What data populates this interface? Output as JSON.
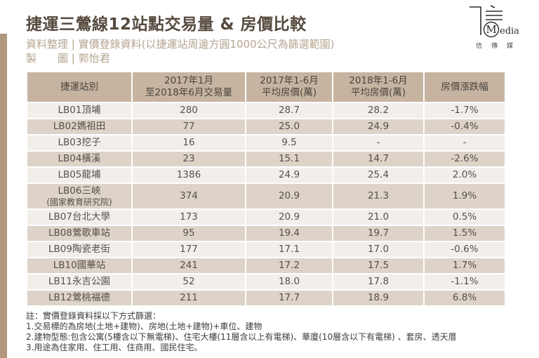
{
  "header": {
    "title": "捷運三鶯線12站點交易量 & 房價比較",
    "credit_line1": "資料整理 | 實價登錄資料(以捷運站周邊方圓1000公尺為篩選範圍)",
    "credit_line2": "製　　圖 | 郭怡君"
  },
  "logo": {
    "m": "M",
    "media": "edia",
    "cn": "信傳媒"
  },
  "table": {
    "columns": [
      {
        "l1": "捷運站別"
      },
      {
        "l1": "2017年1月",
        "l2": "至2018年6月交易量"
      },
      {
        "l1": "2017年1-6月",
        "l2": "平均房價(萬)"
      },
      {
        "l1": "2018年1-6月",
        "l2": "平均房價(萬)"
      },
      {
        "l1": "房價漲跌幅"
      }
    ],
    "rows": [
      {
        "station": [
          "LB01頂埔"
        ],
        "volume": "280",
        "avg2017": "28.7",
        "avg2018": "28.2",
        "change": "-1.7%"
      },
      {
        "station": [
          "LB02媽祖田"
        ],
        "volume": "77",
        "avg2017": "25.0",
        "avg2018": "24.9",
        "change": "-0.4%"
      },
      {
        "station": [
          "LB03挖子"
        ],
        "volume": "16",
        "avg2017": "9.5",
        "avg2018": "-",
        "change": "-"
      },
      {
        "station": [
          "LB04橫溪"
        ],
        "volume": "23",
        "avg2017": "15.1",
        "avg2018": "14.7",
        "change": "-2.6%"
      },
      {
        "station": [
          "LB05龍埔"
        ],
        "volume": "1386",
        "avg2017": "24.9",
        "avg2018": "25.4",
        "change": "2.0%"
      },
      {
        "station": [
          "LB06三峽",
          "(國家教育研究院)"
        ],
        "volume": "374",
        "avg2017": "20.9",
        "avg2018": "21.3",
        "change": "1.9%"
      },
      {
        "station": [
          "LB07台北大學"
        ],
        "volume": "173",
        "avg2017": "20.9",
        "avg2018": "21.0",
        "change": "0.5%"
      },
      {
        "station": [
          "LB08鶯歌車站"
        ],
        "volume": "95",
        "avg2017": "19.4",
        "avg2018": "19.7",
        "change": "1.5%"
      },
      {
        "station": [
          "LB09陶瓷老街"
        ],
        "volume": "177",
        "avg2017": "17.1",
        "avg2018": "17.0",
        "change": "-0.6%"
      },
      {
        "station": [
          "LB10國華站"
        ],
        "volume": "241",
        "avg2017": "17.2",
        "avg2018": "17.5",
        "change": "1.7%"
      },
      {
        "station": [
          "LB11永吉公園"
        ],
        "volume": "52",
        "avg2017": "18.0",
        "avg2018": "17.8",
        "change": "-1.1%"
      },
      {
        "station": [
          "LB12鶯桃福德"
        ],
        "volume": "211",
        "avg2017": "17.7",
        "avg2018": "18.9",
        "change": "6.8%"
      }
    ]
  },
  "notes": [
    "註：實價登錄資料採以下方式篩選：",
    "1.交易標的為房地(土地+建物)、房地(土地+建物)+車位、建物",
    "2.建物型態:包含公寓(5樓含以下無電梯)、住宅大樓(11層含以上有電梯)、華廈(10層含以下有電梯) 、套房、透天厝",
    "3.用途為住家用、住工用、住商用、國民住宅。"
  ],
  "colors": {
    "left_bar": "#b0987e",
    "header_bg": "#c6b4a1",
    "row_light": "#f2efeb",
    "row_tan": "#ddd3c8",
    "title_text": "#564a3e",
    "credit_text": "#b5a48f",
    "cell_text": "#56504a"
  },
  "chart_data": {
    "type": "table",
    "title": "捷運三鶯線12站點交易量 & 房價比較",
    "columns": [
      "捷運站別",
      "2017年1月至2018年6月交易量",
      "2017年1-6月平均房價(萬)",
      "2018年1-6月平均房價(萬)",
      "房價漲跌幅"
    ],
    "rows": [
      [
        "LB01頂埔",
        280,
        28.7,
        28.2,
        "-1.7%"
      ],
      [
        "LB02媽祖田",
        77,
        25.0,
        24.9,
        "-0.4%"
      ],
      [
        "LB03挖子",
        16,
        9.5,
        null,
        null
      ],
      [
        "LB04橫溪",
        23,
        15.1,
        14.7,
        "-2.6%"
      ],
      [
        "LB05龍埔",
        1386,
        24.9,
        25.4,
        "2.0%"
      ],
      [
        "LB06三峽(國家教育研究院)",
        374,
        20.9,
        21.3,
        "1.9%"
      ],
      [
        "LB07台北大學",
        173,
        20.9,
        21.0,
        "0.5%"
      ],
      [
        "LB08鶯歌車站",
        95,
        19.4,
        19.7,
        "1.5%"
      ],
      [
        "LB09陶瓷老街",
        177,
        17.1,
        17.0,
        "-0.6%"
      ],
      [
        "LB10國華站",
        241,
        17.2,
        17.5,
        "1.7%"
      ],
      [
        "LB11永吉公園",
        52,
        18.0,
        17.8,
        "-1.1%"
      ],
      [
        "LB12鶯桃福德",
        211,
        17.7,
        18.9,
        "6.8%"
      ]
    ]
  }
}
